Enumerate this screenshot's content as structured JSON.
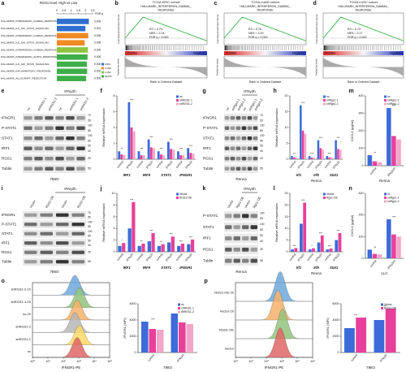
{
  "panels": [
    {
      "letter": "a",
      "type": "hbar",
      "title": "RGS1 level: High vs Low",
      "fdr_header": "FDR q",
      "categories": [
        "HALLMARK_INTERFERON_GAMMA_RESPONSE",
        "HALLMARK_IL6_JAK_STAT3_SIGNALING",
        "HALLMARK_INTERFERON_GAMMA_RESPONSE",
        "HALLMARK_IL6_JAK_STAT3_SIGNALING",
        "HALLMARK_INTERFERON_GAMMA_RESPONSE",
        "HALLMARK_INTERFERON_ALPHA_RESPONSE",
        "HALLMARK_IL6_JAK_STAT3_SIGNALING",
        "HALLMARK_INFLAMMATORY_RESPONSE",
        "HALLMARK_ALLOGRAFT_REJECTION"
      ],
      "category_colors": [
        "#e0262b",
        "#111111",
        "#e0262b",
        "#111111",
        "#e0262b",
        "#111111",
        "#111111",
        "#111111",
        "#111111"
      ],
      "values": [
        2.24,
        2.0,
        2.2,
        1.95,
        2.17,
        2.15,
        2.1,
        2.12,
        2.05
      ],
      "fdr": [
        "0.000",
        "0.001",
        "0.000",
        "0.005",
        "0.000",
        "0.000",
        "0.000",
        "0.000",
        "0.000"
      ],
      "colors": [
        "#2f6fd0",
        "#2f6fd0",
        "#f08a24",
        "#f08a24",
        "#8cc63f",
        "#3fae49",
        "#3fae49",
        "#3fae49",
        "#3fae49"
      ],
      "xlim": [
        0,
        2.5
      ],
      "xticks": [
        0,
        0.5,
        1,
        1.5,
        2,
        2.5
      ],
      "legend": [
        {
          "name": "KIRC",
          "color": "#2f6fd0"
        },
        {
          "name": "LUAD",
          "color": "#f08a24"
        },
        {
          "name": "LUSC",
          "color": "#8cc63f"
        },
        {
          "name": "SKCM",
          "color": "#3fae49"
        }
      ]
    },
    {
      "letter": "b",
      "type": "gsea",
      "cohort": "TCGA KIRC cohort",
      "gene_set": "HALLMARK_INTERFERON_GAMMA_",
      "gene_set2": "RESPONSE",
      "stats": [
        "ES = 0.74",
        "NES = 2.24",
        "FDR q = 0.000"
      ],
      "y_label": "Running Enrichment Score",
      "y2_label": "Ranked list metric",
      "positive": "Positive",
      "negative": "Negative",
      "x_label": "Rank in Ordered Dataset"
    },
    {
      "letter": "c",
      "type": "gsea",
      "cohort": "TCGA LUAD cohort",
      "gene_set": "HALLMARK_INTERFERON_GAMMA_",
      "gene_set2": "RESPONSE",
      "stats": [
        "ES = 0.76",
        "NES = 2.20",
        "FDR q = 0.000"
      ],
      "y_label": "Running Enrichment Score",
      "y2_label": "Ranked list metric",
      "positive": "Positive",
      "negative": "Negative",
      "x_label": "Rank in Ordered Dataset"
    },
    {
      "letter": "d",
      "type": "gsea",
      "cohort": "TCGA LUSC cohort",
      "gene_set": "HALLMARK_INTERFERON_GAMMA_",
      "gene_set2": "RESPONSE",
      "stats": [
        "ES = 0.74",
        "NES = 2.17",
        "FDR q = 0.000"
      ],
      "y_label": "Running Enrichment Score",
      "y2_label": "Ranked list metric",
      "positive": "Positive",
      "negative": "Negative",
      "x_label": "Rank in Ordered Dataset"
    },
    {
      "letter": "e",
      "type": "blot",
      "treatment": "IFNγ2h",
      "lanes": [
        "nc",
        "shRGS1-1",
        "shRGS1-2",
        "nc",
        "shRGS1-1",
        "shRGS1-2"
      ],
      "proteins": [
        "IFNGR1",
        "P-STAT1",
        "STAT1",
        "IRF1",
        "RGS1",
        "Tublin"
      ],
      "kda": [
        [
          70,
          55
        ],
        [
          100,
          85
        ],
        [
          100,
          85
        ],
        [
          55,
          40
        ],
        [
          25
        ],
        [
          55
        ]
      ],
      "cell": "786O"
    },
    {
      "letter": "f",
      "type": "bar",
      "y_label": "Relative mRNA expression",
      "ylim": [
        0,
        8
      ],
      "yticks": [
        0,
        2,
        4,
        6,
        8
      ],
      "categories": [
        "control",
        "IFNγ2h",
        "control",
        "IFNγ2h",
        "control",
        "IFNγ2h",
        "control",
        "IFNγ2h"
      ],
      "genes": [
        "IRF1",
        "IRF9",
        "STAT1",
        "IFNGR1"
      ],
      "sig": [
        "**",
        "***",
        "***",
        "***",
        "***",
        "***",
        "***",
        "***"
      ],
      "series": [
        {
          "name": "nc",
          "color": "#3d6bd8",
          "values": [
            1,
            7.2,
            1,
            2.5,
            1,
            2.2,
            1,
            1.4
          ]
        },
        {
          "name": "shRGS1-1",
          "color": "#e8409a",
          "values": [
            0.6,
            4.0,
            0.5,
            1.5,
            0.6,
            1.3,
            0.5,
            0.8
          ]
        },
        {
          "name": "shRGS1-2",
          "color": "#f4a6c8",
          "values": [
            0.5,
            3.5,
            0.5,
            1.4,
            0.5,
            1.2,
            0.5,
            0.7
          ]
        }
      ]
    },
    {
      "letter": "g",
      "type": "blot",
      "treatment": "IFNγ2h",
      "lanes": [
        "nc",
        "shRgs1-1",
        "shRgs1-2",
        "nc",
        "shRgs1-1",
        "shRgs1-2"
      ],
      "proteins": [
        "IFNGR1",
        "P-STAT1",
        "STAT1",
        "IRF1",
        "RGS1",
        "Tublin"
      ],
      "kda": [
        [
          70,
          55
        ],
        [
          100,
          85
        ],
        [
          100,
          85
        ],
        [
          55,
          40
        ],
        [
          25
        ],
        [
          55
        ]
      ],
      "cell": "Renca"
    },
    {
      "letter": "h",
      "type": "bar",
      "y_label": "Relative mRNA expression",
      "ylim": [
        0,
        20
      ],
      "yticks": [
        0,
        5,
        10,
        15,
        20
      ],
      "categories": [
        "control",
        "IFNγ2h",
        "control",
        "IFNγ2h",
        "control",
        "IFNγ2h"
      ],
      "genes": [
        "Irf1",
        "Irf9",
        "Stat1"
      ],
      "cell": "Renca",
      "sig": [
        "**",
        "***",
        "***",
        "***",
        "***",
        "***"
      ],
      "series": [
        {
          "name": "nc",
          "color": "#3d6bd8",
          "values": [
            1,
            17,
            1,
            6,
            1,
            6
          ]
        },
        {
          "name": "shRgs1-1",
          "color": "#e8409a",
          "values": [
            0.6,
            9,
            0.5,
            3.5,
            0.6,
            3.2
          ]
        },
        {
          "name": "shRgs1-2",
          "color": "#f4a6c8",
          "values": [
            0.5,
            8,
            0.5,
            3,
            0.5,
            3
          ]
        }
      ]
    },
    {
      "letter": "m",
      "type": "bar",
      "y_label": "CXCL9 (pg/ml)",
      "ylim": [
        0,
        400
      ],
      "yticks": [
        0,
        100,
        200,
        300,
        400
      ],
      "categories": [
        "control",
        "IFNγ24h"
      ],
      "cell": "Renca",
      "sig": [
        "**",
        "***"
      ],
      "series": [
        {
          "name": "nc",
          "color": "#3d6bd8",
          "values": [
            60,
            330
          ]
        },
        {
          "name": "shRgs1-1",
          "color": "#e8409a",
          "values": [
            25,
            170
          ]
        },
        {
          "name": "shRgs1-2",
          "color": "#f4a6c8",
          "values": [
            20,
            150
          ]
        }
      ]
    },
    {
      "letter": "i",
      "type": "blot",
      "treatment": "IFNγ2h",
      "lanes": [
        "Vector",
        "RGS1-OE",
        "Vector",
        "RGS1-OE"
      ],
      "proteins": [
        "IFNGR1",
        "P-STAT1",
        "STAT1",
        "IRF1",
        "RGS1",
        "Tublin"
      ],
      "kda": [
        [
          70,
          55
        ],
        [
          100,
          85
        ],
        [
          100,
          85
        ],
        [
          55,
          40
        ],
        [
          25
        ],
        [
          55
        ]
      ],
      "cell": "786O"
    },
    {
      "letter": "j",
      "type": "bar",
      "y_label": "Relative mRNA expression",
      "ylim": [
        0,
        10
      ],
      "yticks": [
        0,
        2,
        4,
        6,
        8,
        10
      ],
      "categories": [
        "control",
        "IFNγ2h",
        "control",
        "IFNγ2h",
        "control",
        "IFNγ2h",
        "control",
        "IFNγ2h"
      ],
      "genes": [
        "IRF1",
        "IRF9",
        "STAT1",
        "IFNGR1"
      ],
      "sig": [
        "*",
        "***",
        "**",
        "***",
        "**",
        "***",
        "***",
        "***"
      ],
      "series": [
        {
          "name": "Vector",
          "color": "#3d6bd8",
          "values": [
            1,
            4,
            1,
            1.8,
            1,
            1.6,
            1,
            1.3
          ]
        },
        {
          "name": "RGS1-OE",
          "color": "#e8409a",
          "values": [
            1.5,
            8.5,
            1.4,
            3.2,
            1.3,
            2.6,
            1.4,
            2.1
          ]
        }
      ]
    },
    {
      "letter": "k",
      "type": "blot",
      "treatment": "IFNγ2h",
      "lanes": [
        "Vector",
        "Rgs1-OE",
        "Vector",
        "Rgs1-OE"
      ],
      "proteins": [
        "P-STAT1",
        "STAT1",
        "IRF1",
        "RGS1",
        "Tublin"
      ],
      "kda": [
        [
          100,
          85
        ],
        [
          100,
          85
        ],
        [
          55,
          40
        ],
        [
          25
        ],
        [
          55
        ]
      ],
      "cell": "Renca"
    },
    {
      "letter": "l",
      "type": "bar",
      "y_label": "Relative mRNA expression",
      "ylim": [
        0,
        25
      ],
      "yticks": [
        0,
        5,
        10,
        15,
        20,
        25
      ],
      "categories": [
        "control",
        "IFNγ2h",
        "control",
        "IFNγ2h",
        "control",
        "IFNγ2h"
      ],
      "genes": [
        "Irf1",
        "Irf9",
        "Stat1"
      ],
      "cell": "Renca",
      "sig": [
        "***",
        "***",
        "*",
        "***",
        "***",
        "***"
      ],
      "series": [
        {
          "name": "Vector",
          "color": "#3d6bd8",
          "values": [
            1,
            12,
            1,
            4,
            1,
            5
          ]
        },
        {
          "name": "Rgs1-OE",
          "color": "#e8409a",
          "values": [
            1.6,
            21,
            1.5,
            7,
            1.4,
            8
          ]
        }
      ]
    },
    {
      "letter": "n",
      "type": "bar",
      "y_label": "CXCL9 (pg/ml)",
      "ylim": [
        0,
        300
      ],
      "yticks": [
        0,
        100,
        200,
        300
      ],
      "categories": [
        "control",
        "IFNγ24h"
      ],
      "cell": "LLC",
      "sig": [
        "**",
        "***"
      ],
      "series": [
        {
          "name": "nc",
          "color": "#3d6bd8",
          "values": [
            40,
            180
          ]
        },
        {
          "name": "shRgs1-1",
          "color": "#e8409a",
          "values": [
            20,
            110
          ]
        },
        {
          "name": "shRgs1-2",
          "color": "#f4a6c8",
          "values": [
            18,
            100
          ]
        }
      ]
    },
    {
      "letter": "o",
      "type": "flow",
      "samples": [
        "shRGS1-2-2h",
        "shRGS1-1-2h",
        "nc-2h",
        "shRGS1-2",
        "shRGS1-1",
        "nc"
      ],
      "sample_colors": [
        "#6fa8dc",
        "#93c47d",
        "#f6b26b",
        "#b7b7b7",
        "#ffd966",
        "#e06666"
      ],
      "x_label": "IFNGR1-PE",
      "xlim": [
        1,
        100000
      ],
      "log_x": true,
      "xticks": [
        {
          "value": 1,
          "label": "10⁰"
        },
        {
          "value": 10,
          "label": "10¹"
        },
        {
          "value": 100,
          "label": "10²"
        },
        {
          "value": 1000,
          "label": "10³"
        },
        {
          "value": 10000,
          "label": "10⁴"
        },
        {
          "value": 100000,
          "label": "10⁵"
        }
      ],
      "bar": {
        "y_label": "IFNGR1 (MFI)",
        "ylim": [
          0,
          6000
        ],
        "yticks": [
          0,
          2000,
          4000,
          6000
        ],
        "categories": [
          "control",
          "IFNγ2h"
        ],
        "cell": "786O",
        "sig": [
          "***",
          "*"
        ],
        "series": [
          {
            "name": "nc",
            "color": "#3d6bd8",
            "values": [
              3800,
              4800
            ]
          },
          {
            "name": "shRGS1-1",
            "color": "#e8409a",
            "values": [
              2900,
              3700
            ]
          },
          {
            "name": "shRGS1-2",
            "color": "#f4a6c8",
            "values": [
              2800,
              3500
            ]
          }
        ]
      }
    },
    {
      "letter": "p",
      "type": "flow",
      "samples": [
        "RGS1-OE-2h",
        "Vector-2h",
        "RGS1-OE",
        "Vector"
      ],
      "sample_colors": [
        "#6fa8dc",
        "#f6b26b",
        "#93c47d",
        "#e06666"
      ],
      "x_label": "IFNGR1-PE",
      "xlim": [
        1,
        100000
      ],
      "log_x": true,
      "xticks": [
        {
          "value": 1,
          "label": "10⁰"
        },
        {
          "value": 10,
          "label": "10¹"
        },
        {
          "value": 100,
          "label": "10²"
        },
        {
          "value": 1000,
          "label": "10³"
        },
        {
          "value": 10000,
          "label": "10⁴"
        },
        {
          "value": 100000,
          "label": "10⁵"
        }
      ],
      "bar": {
        "y_label": "IFNGR1 (MFI)",
        "ylim": [
          0,
          6000
        ],
        "yticks": [
          0,
          2000,
          4000,
          6000
        ],
        "categories": [
          "control",
          "IFNγ2h"
        ],
        "cell": "786O",
        "sig": [
          "***",
          "***"
        ],
        "series": [
          {
            "name": "Vector",
            "color": "#3d6bd8",
            "values": [
              3000,
              4000
            ]
          },
          {
            "name": "RGS1-OE",
            "color": "#e8409a",
            "values": [
              4300,
              5400
            ]
          }
        ]
      }
    }
  ]
}
